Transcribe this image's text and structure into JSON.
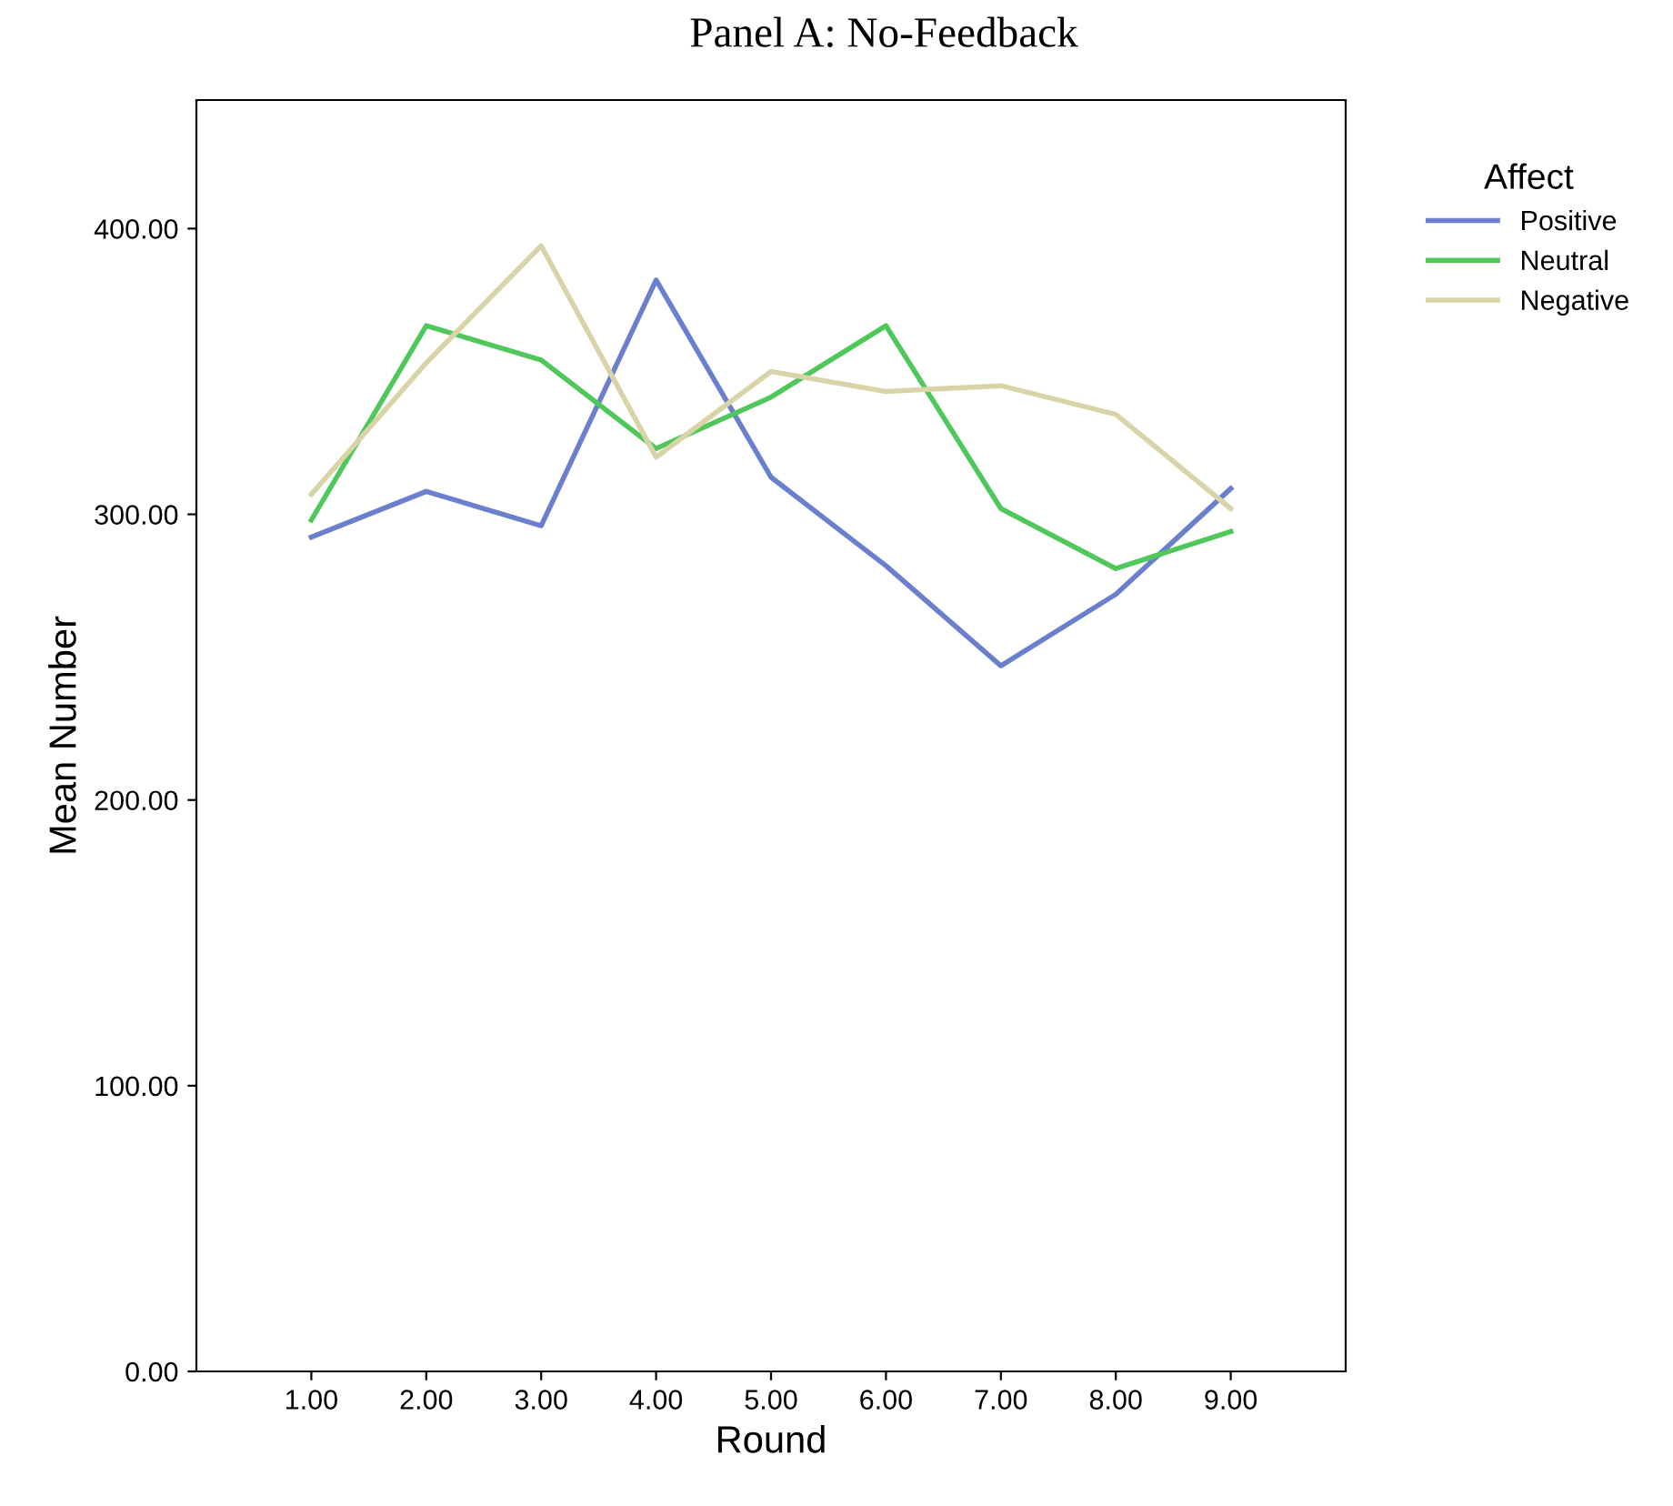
{
  "chart_data": {
    "type": "line",
    "title": "Panel A: No-Feedback",
    "xlabel": "Round",
    "ylabel": "Mean Number",
    "legend_title": "Affect",
    "legend": "top right",
    "grid": false,
    "marker": "none",
    "line_style": "solid",
    "categories": [
      "1.00",
      "2.00",
      "3.00",
      "4.00",
      "5.00",
      "6.00",
      "7.00",
      "8.00",
      "9.00"
    ],
    "ylim": [
      0,
      445
    ],
    "yticks": [
      {
        "value": 0,
        "label": "0.00"
      },
      {
        "value": 100,
        "label": "100.00"
      },
      {
        "value": 200,
        "label": "200.00"
      },
      {
        "value": 300,
        "label": "300.00"
      },
      {
        "value": 400,
        "label": "400.00"
      }
    ],
    "series": [
      {
        "name": "Positive",
        "color": "#6b7fcf",
        "values": [
          292,
          308,
          296,
          382,
          313,
          282,
          247,
          272,
          309
        ]
      },
      {
        "name": "Neutral",
        "color": "#4fc75a",
        "values": [
          298,
          366,
          354,
          323,
          341,
          366,
          302,
          281,
          294
        ]
      },
      {
        "name": "Negative",
        "color": "#d9d3a8",
        "values": [
          307,
          353,
          394,
          320,
          350,
          343,
          345,
          335,
          302
        ]
      }
    ]
  }
}
